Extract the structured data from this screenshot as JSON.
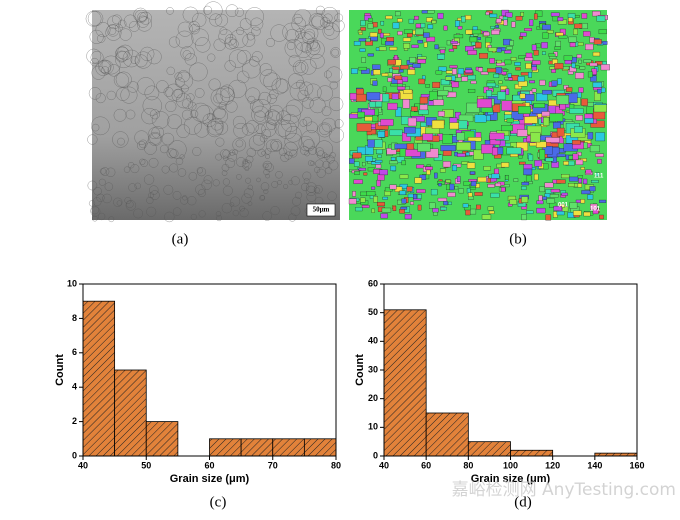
{
  "figure": {
    "panels": {
      "a": {
        "caption": "(a)",
        "scale_bar": "50μm"
      },
      "b": {
        "caption": "(b)",
        "legend_labels": [
          "111",
          "001",
          "101"
        ]
      },
      "c": {
        "caption": "(c)"
      },
      "d": {
        "caption": "(d)"
      }
    },
    "watermark": "嘉峪检测网 AnyTesting.com"
  },
  "chart_data": [
    {
      "type": "histogram",
      "bins": [
        40,
        45,
        50,
        55,
        60,
        65,
        70,
        75,
        80
      ],
      "values": [
        9,
        5,
        2,
        0,
        1,
        1,
        1,
        1
      ],
      "color": "#e2823a",
      "hatch": true,
      "x_label": "Grain size (μm)",
      "y_label": "Count",
      "xlim": [
        40,
        80
      ],
      "xticks": [
        40,
        50,
        60,
        70,
        80
      ],
      "ylim": [
        0,
        10
      ],
      "yticks": [
        0,
        2,
        4,
        6,
        8,
        10
      ]
    },
    {
      "type": "histogram",
      "bins": [
        40,
        60,
        80,
        100,
        120,
        140,
        160
      ],
      "values": [
        51,
        15,
        5,
        2,
        0,
        1
      ],
      "color": "#e2823a",
      "hatch": true,
      "x_label": "Grain size (μm)",
      "y_label": "Count",
      "xlim": [
        40,
        160
      ],
      "xticks": [
        40,
        60,
        80,
        100,
        120,
        140,
        160
      ],
      "ylim": [
        0,
        60
      ],
      "yticks": [
        0,
        10,
        20,
        30,
        40,
        50,
        60
      ]
    }
  ]
}
